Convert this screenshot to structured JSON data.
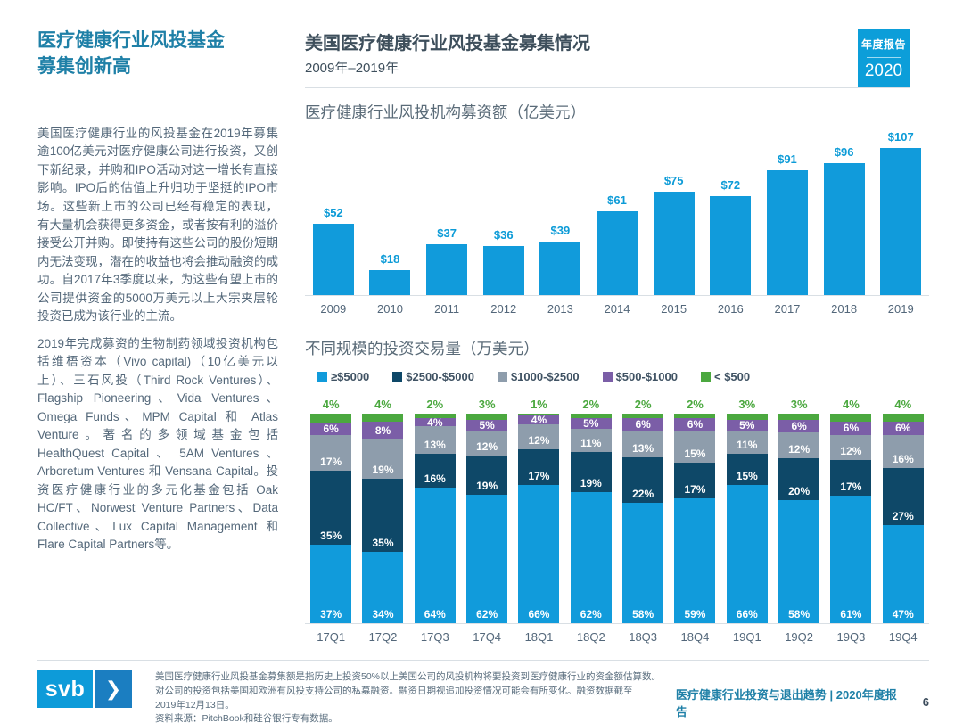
{
  "sidebar": {
    "title": "医疗健康行业风投基金\n募集创新高",
    "paragraphs": [
      "美国医疗健康行业的风投基金在2019年募集逾100亿美元对医疗健康公司进行投资，又创下新纪录，并购和IPO活动对这一增长有直接影响。IPO后的估值上升归功于坚挺的IPO市场。这些新上市的公司已经有稳定的表现， 有大量机会获得更多资金，或者按有利的溢价接受公开并购。即使持有这些公司的股份短期内无法变现，潜在的收益也将会推动融资的成功。自2017年3季度以来，为这些有望上市的公司提供资金的5000万美元以上大宗夹层轮投资已成为该行业的主流。",
      "2019年完成募资的生物制药领域投资机构包括维梧资本（Vivo capital)（10亿美元以上）、三石风投（Third Rock Ventures）、Flagship Pioneering、Vida Ventures、Omega Funds、MPM Capital 和 Atlas Venture。著名的多领域基金包括 HealthQuest Capital 、 5AM Ventures 、 Arboretum Ventures 和 Vensana Capital。投资医疗健康行业的多元化基金包括 Oak HC/FT、Norwest Venture Partners、Data Collective、Lux Capital Management 和 Flare Capital Partners等。"
    ]
  },
  "main": {
    "title": "美国医疗健康行业风投基金募集情况",
    "subtitle": "2009年–2019年"
  },
  "badge": {
    "line1": "年度报告",
    "line2": "2020"
  },
  "chart_data": [
    {
      "type": "bar",
      "title": "医疗健康行业风投机构募资额（亿美元）",
      "categories": [
        "2009",
        "2010",
        "2011",
        "2012",
        "2013",
        "2014",
        "2015",
        "2016",
        "2017",
        "2018",
        "2019"
      ],
      "values": [
        52,
        18,
        37,
        36,
        39,
        61,
        75,
        72,
        91,
        96,
        107
      ],
      "bar_labels": [
        "$52",
        "$18",
        "$37",
        "$36",
        "$39",
        "$61",
        "$75",
        "$72",
        "$91",
        "$96",
        "$107"
      ],
      "bar_color": "#119bdb",
      "ylim": [
        0,
        107
      ],
      "grid": "off",
      "legend_position": "none"
    },
    {
      "type": "stacked-bar",
      "title": "不同规模的投资交易量（万美元）",
      "categories": [
        "17Q1",
        "17Q2",
        "17Q3",
        "17Q4",
        "18Q1",
        "18Q2",
        "18Q3",
        "18Q4",
        "19Q1",
        "19Q2",
        "19Q3",
        "19Q4"
      ],
      "series": [
        {
          "name": "≥$5000",
          "color": "#119bdb",
          "values": [
            37,
            34,
            64,
            62,
            66,
            62,
            58,
            59,
            66,
            58,
            61,
            47
          ]
        },
        {
          "name": "$2500-$5000",
          "color": "#0e4868",
          "values": [
            35,
            35,
            16,
            19,
            17,
            19,
            22,
            17,
            15,
            20,
            17,
            27
          ]
        },
        {
          "name": "$1000-$2500",
          "color": "#8e9dac",
          "values": [
            17,
            19,
            13,
            12,
            12,
            11,
            13,
            15,
            11,
            12,
            12,
            16
          ]
        },
        {
          "name": "$500-$1000",
          "color": "#7b5ea7",
          "values": [
            6,
            8,
            4,
            5,
            4,
            5,
            6,
            6,
            5,
            6,
            6,
            6
          ]
        },
        {
          "name": "< $500",
          "color": "#4ba83f",
          "values": [
            4,
            4,
            2,
            3,
            1,
            2,
            2,
            2,
            3,
            3,
            4,
            4
          ]
        }
      ],
      "unit": "%",
      "ylim": [
        0,
        100
      ],
      "grid": "off",
      "legend_position": "top"
    }
  ],
  "footer": {
    "logo_text": "svb",
    "chevron": "❯",
    "note_lines": [
      "美国医疗健康行业风投基金募集额是指历史上投资50%以上美国公司的风投机构将要投资到医疗健康行业的资金额估算数。",
      "对公司的投资包括美国和欧洲有风投支持公司的私募融资。融资日期视追加投资情况可能会有所变化。融资数据截至",
      "2019年12月13日。",
      "资料来源：PitchBook和硅谷银行专有数据。"
    ],
    "report_title": "医疗健康行业投资与退出趋势 | 2020年度报告",
    "page_number": "6"
  }
}
